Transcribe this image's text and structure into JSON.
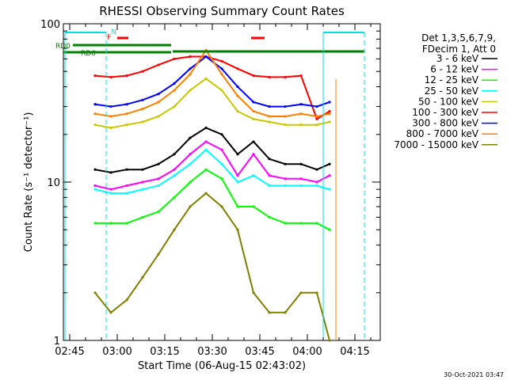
{
  "chart_data": {
    "type": "line",
    "title": "RHESSI Observing Summary Count Rates",
    "xlabel": "Start Time (06-Aug-15 02:43:02)",
    "ylabel": "Count Rate (s⁻¹ detector⁻¹)",
    "yscale": "log",
    "xlim": [
      "02:43",
      "04:23"
    ],
    "ylim": [
      1,
      100
    ],
    "x_ticks": [
      "02:45",
      "03:00",
      "03:15",
      "03:30",
      "03:45",
      "04:00",
      "04:15"
    ],
    "y_ticks": [
      "1",
      "10",
      "100"
    ],
    "grid": false,
    "legend_position": "right",
    "legend_header": [
      "Det 1,3,5,6,7,9,",
      "FDecim 1, Att 0"
    ],
    "timestamp": "30-Oct-2021 03:47",
    "x": [
      "02:53",
      "02:58",
      "03:03",
      "03:08",
      "03:13",
      "03:18",
      "03:23",
      "03:28",
      "03:33",
      "03:38",
      "03:43",
      "03:48",
      "03:53",
      "03:58",
      "04:03",
      "04:07"
    ],
    "series": [
      {
        "name": "3 - 6 keV",
        "color": "#000000",
        "values": [
          12,
          11.5,
          12,
          12,
          13,
          15,
          19,
          22,
          20,
          15,
          18,
          14,
          13,
          13,
          12,
          13
        ]
      },
      {
        "name": "6 - 12 keV",
        "color": "#ff00ff",
        "values": [
          9.5,
          9,
          9.5,
          10,
          10.5,
          12,
          15,
          18,
          16,
          11,
          15,
          11,
          10.5,
          10.5,
          10,
          11
        ]
      },
      {
        "name": "12 - 25 keV",
        "color": "#00ff00",
        "values": [
          5.5,
          5.5,
          5.5,
          6,
          6.5,
          8,
          10,
          12,
          10.5,
          7,
          7,
          6,
          5.5,
          5.5,
          5.5,
          5
        ]
      },
      {
        "name": "25 - 50 keV",
        "color": "#00ffff",
        "values": [
          9,
          8.5,
          8.5,
          9,
          9.5,
          11,
          13,
          16,
          13,
          10,
          11,
          9.5,
          9.5,
          9.5,
          9.5,
          9
        ]
      },
      {
        "name": "50 - 100 keV",
        "color": "#c8c800",
        "values": [
          23,
          22,
          23,
          24,
          26,
          30,
          38,
          45,
          38,
          28,
          25,
          24,
          23,
          23,
          23,
          24
        ]
      },
      {
        "name": "100 - 300 keV",
        "color": "#ff0000",
        "values": [
          47,
          46,
          47,
          50,
          55,
          60,
          62,
          62,
          58,
          52,
          47,
          46,
          46,
          47,
          25,
          28
        ]
      },
      {
        "name": "300 - 800 keV",
        "color": "#0000ff",
        "values": [
          31,
          30,
          31,
          33,
          36,
          42,
          52,
          62,
          52,
          40,
          32,
          30,
          30,
          31,
          30,
          32
        ]
      },
      {
        "name": "800 - 7000 keV",
        "color": "#ff8000",
        "values": [
          27,
          26,
          27,
          29,
          32,
          38,
          48,
          68,
          48,
          35,
          28,
          26,
          26,
          27,
          26,
          27
        ]
      },
      {
        "name": "7000 - 15000 keV",
        "color": "#808000",
        "values": [
          2,
          1.5,
          1.8,
          2.5,
          3.5,
          5,
          7,
          8.5,
          7,
          5,
          2,
          1.5,
          1.5,
          2,
          2,
          1
        ]
      }
    ],
    "annotations": {
      "rd0_label": "RD0",
      "rd6_label": "RD6",
      "n_label": "N",
      "f_label": "F"
    }
  }
}
